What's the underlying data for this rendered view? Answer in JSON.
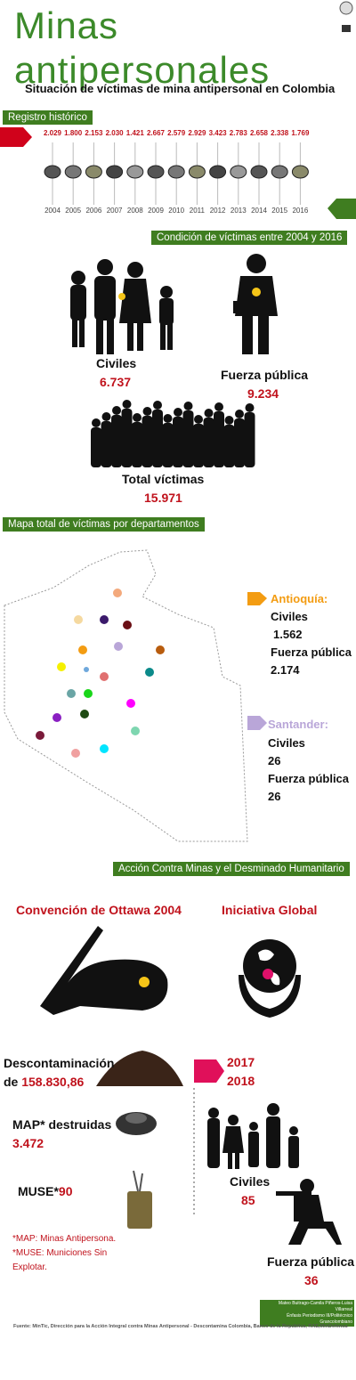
{
  "header": {
    "title": "Minas antipersonales",
    "subtitle": "Situación de víctimas de mina antipersonal en Colombia"
  },
  "timeline": {
    "label": "Registro histórico",
    "values": [
      "2.029",
      "1.800",
      "2.153",
      "2.030",
      "1.421",
      "2.667",
      "2.579",
      "2.929",
      "3.423",
      "2.783",
      "2.658",
      "2.338",
      "1.769"
    ],
    "years": [
      "2004",
      "2005",
      "2006",
      "2007",
      "2008",
      "2009",
      "2010",
      "2011",
      "2012",
      "2013",
      "2014",
      "2015",
      "2016"
    ]
  },
  "conditions": {
    "label": "Condición de víctimas entre 2004 y 2016",
    "civilians": {
      "label": "Civiles",
      "value": "6.737"
    },
    "force": {
      "label": "Fuerza pública",
      "value": "9.234"
    },
    "total": {
      "label": "Total víctimas",
      "value": "15.971"
    }
  },
  "map": {
    "label": "Mapa total de víctimas por departamentos",
    "antioquia": {
      "name": "Antioquía:",
      "civ_label": "Civiles",
      "civ_value": "1.562",
      "force_label": "Fuerza pública",
      "force_value": "2.174"
    },
    "santander": {
      "name": "Santander:",
      "civ_label": "Civiles",
      "civ_value": "26",
      "force_label": "Fuerza pública",
      "force_value": "26"
    }
  },
  "action": {
    "label": "Acción Contra Minas y el Desminado Humanitario",
    "ottawa": "Convención de Ottawa 2004",
    "global": "Iniciativa Global",
    "decon_label": "Descontaminación",
    "decon_prefix": "de",
    "decon_value": "158.830,86",
    "map_label": "MAP* destruidas",
    "map_value": "3.472",
    "muse_label": "MUSE*",
    "muse_value": "90",
    "years": [
      "2017",
      "2018"
    ],
    "civ_label": "Civiles",
    "civ_value": "85",
    "force_label": "Fuerza pública",
    "force_value": "36",
    "notes": [
      "*MAP: Minas Antipersona.",
      "*MUSE: Municiones Sin Explotar."
    ]
  },
  "credits": [
    "Mateo Buitrago-Camila Piñeros-Luisa Villarreal",
    "Énfasis Periodismo III/Politécnico Grancolombiano"
  ],
  "source": "Fuente: MinTic, Dirección para la Acción Integral contra Minas Antipersonal - Descontamina Colombia, Banco de la República, RAE,MinDefensa"
}
